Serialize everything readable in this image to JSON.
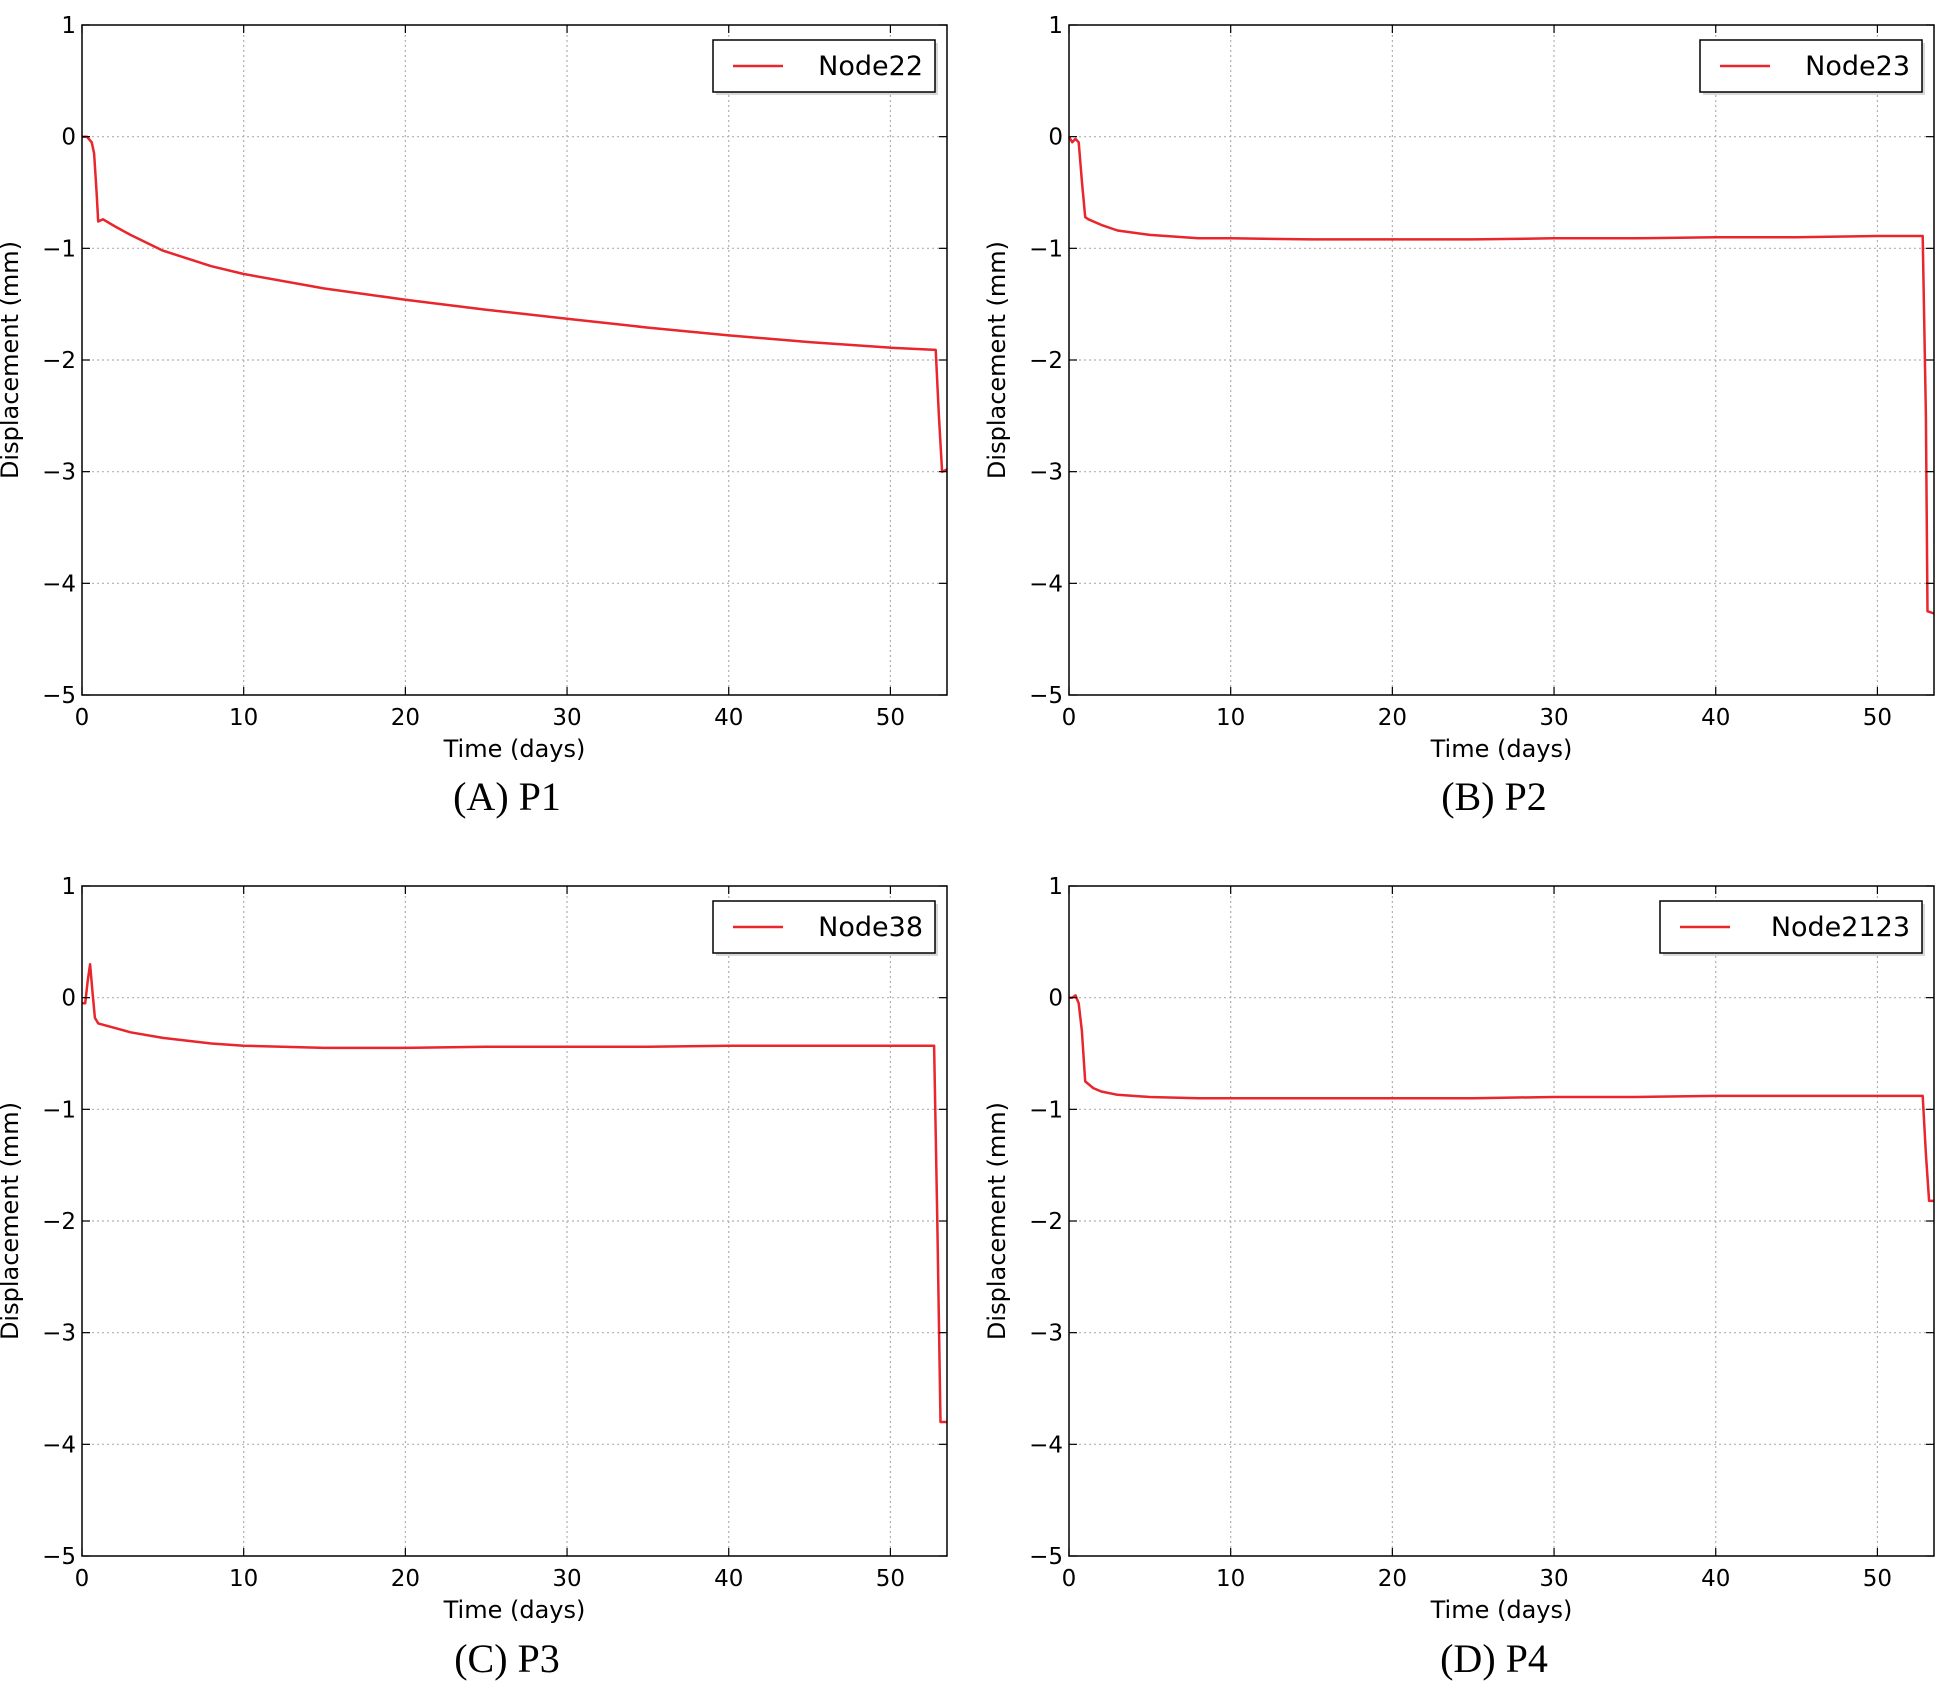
{
  "chart_data": [
    {
      "type": "line",
      "caption": "(A) P1",
      "xlabel": "Time (days)",
      "ylabel": "Displacement (mm)",
      "xlim": [
        0,
        53.5
      ],
      "ylim": [
        -5,
        1
      ],
      "xticks": [
        "0",
        "10",
        "20",
        "30",
        "40",
        "50"
      ],
      "yticks": [
        "1",
        "0",
        "−1",
        "−2",
        "−3",
        "−4",
        "−5"
      ],
      "grid": true,
      "legend": "top-right",
      "series": [
        {
          "name": "Node22",
          "color": "#e8262c",
          "x": [
            0,
            0.3,
            0.6,
            0.75,
            0.9,
            1.0,
            1.3,
            2,
            3,
            5,
            8,
            10,
            15,
            20,
            25,
            30,
            35,
            40,
            45,
            50,
            52.8,
            53.0,
            53.2,
            53.5
          ],
          "y": [
            0,
            0,
            -0.05,
            -0.15,
            -0.5,
            -0.76,
            -0.74,
            -0.8,
            -0.88,
            -1.02,
            -1.16,
            -1.23,
            -1.36,
            -1.46,
            -1.55,
            -1.63,
            -1.71,
            -1.78,
            -1.84,
            -1.89,
            -1.91,
            -2.5,
            -3.0,
            -2.98
          ]
        }
      ]
    },
    {
      "type": "line",
      "caption": "(B) P2",
      "xlabel": "Time (days)",
      "ylabel": "Displacement (mm)",
      "xlim": [
        0,
        53.5
      ],
      "ylim": [
        -5,
        1
      ],
      "xticks": [
        "0",
        "10",
        "20",
        "30",
        "40",
        "50"
      ],
      "yticks": [
        "1",
        "0",
        "−1",
        "−2",
        "−3",
        "−4",
        "−5"
      ],
      "grid": true,
      "legend": "top-right",
      "series": [
        {
          "name": "Node23",
          "color": "#e8262c",
          "x": [
            0,
            0.2,
            0.4,
            0.6,
            0.8,
            1.0,
            1.2,
            2,
            3,
            5,
            8,
            10,
            15,
            20,
            25,
            30,
            35,
            40,
            45,
            50,
            52.8,
            53.0,
            53.1,
            53.5
          ],
          "y": [
            0,
            -0.05,
            -0.02,
            -0.05,
            -0.4,
            -0.72,
            -0.74,
            -0.79,
            -0.84,
            -0.88,
            -0.91,
            -0.91,
            -0.92,
            -0.92,
            -0.92,
            -0.91,
            -0.91,
            -0.9,
            -0.9,
            -0.89,
            -0.89,
            -2.5,
            -4.25,
            -4.27
          ]
        }
      ]
    },
    {
      "type": "line",
      "caption": "(C) P3",
      "xlabel": "Time (days)",
      "ylabel": "Displacement (mm)",
      "xlim": [
        0,
        53.5
      ],
      "ylim": [
        -5,
        1
      ],
      "xticks": [
        "0",
        "10",
        "20",
        "30",
        "40",
        "50"
      ],
      "yticks": [
        "1",
        "0",
        "−1",
        "−2",
        "−3",
        "−4",
        "−5"
      ],
      "grid": true,
      "legend": "top-right",
      "series": [
        {
          "name": "Node38",
          "color": "#e8262c",
          "x": [
            0,
            0.2,
            0.35,
            0.5,
            0.65,
            0.8,
            1.0,
            2,
            3,
            5,
            8,
            10,
            15,
            20,
            25,
            30,
            35,
            40,
            45,
            50,
            52.7,
            52.9,
            53.1,
            53.5
          ],
          "y": [
            -0.05,
            -0.05,
            0.15,
            0.3,
            0.05,
            -0.18,
            -0.23,
            -0.27,
            -0.31,
            -0.36,
            -0.41,
            -0.43,
            -0.45,
            -0.45,
            -0.44,
            -0.44,
            -0.44,
            -0.43,
            -0.43,
            -0.43,
            -0.43,
            -2.0,
            -3.8,
            -3.8
          ]
        }
      ]
    },
    {
      "type": "line",
      "caption": "(D) P4",
      "xlabel": "Time (days)",
      "ylabel": "Displacement (mm)",
      "xlim": [
        0,
        53.5
      ],
      "ylim": [
        -5,
        1
      ],
      "xticks": [
        "0",
        "10",
        "20",
        "30",
        "40",
        "50"
      ],
      "yticks": [
        "1",
        "0",
        "−1",
        "−2",
        "−3",
        "−4",
        "−5"
      ],
      "grid": true,
      "legend": "top-right",
      "series": [
        {
          "name": "Node2123",
          "color": "#e8262c",
          "x": [
            0,
            0.2,
            0.4,
            0.6,
            0.8,
            1.0,
            1.5,
            2,
            3,
            5,
            8,
            10,
            15,
            20,
            25,
            30,
            35,
            40,
            45,
            50,
            52.8,
            53.0,
            53.2,
            53.5
          ],
          "y": [
            0,
            0,
            0.02,
            -0.05,
            -0.3,
            -0.75,
            -0.81,
            -0.84,
            -0.87,
            -0.89,
            -0.9,
            -0.9,
            -0.9,
            -0.9,
            -0.9,
            -0.89,
            -0.89,
            -0.88,
            -0.88,
            -0.88,
            -0.88,
            -1.4,
            -1.82,
            -1.82
          ]
        }
      ]
    }
  ]
}
